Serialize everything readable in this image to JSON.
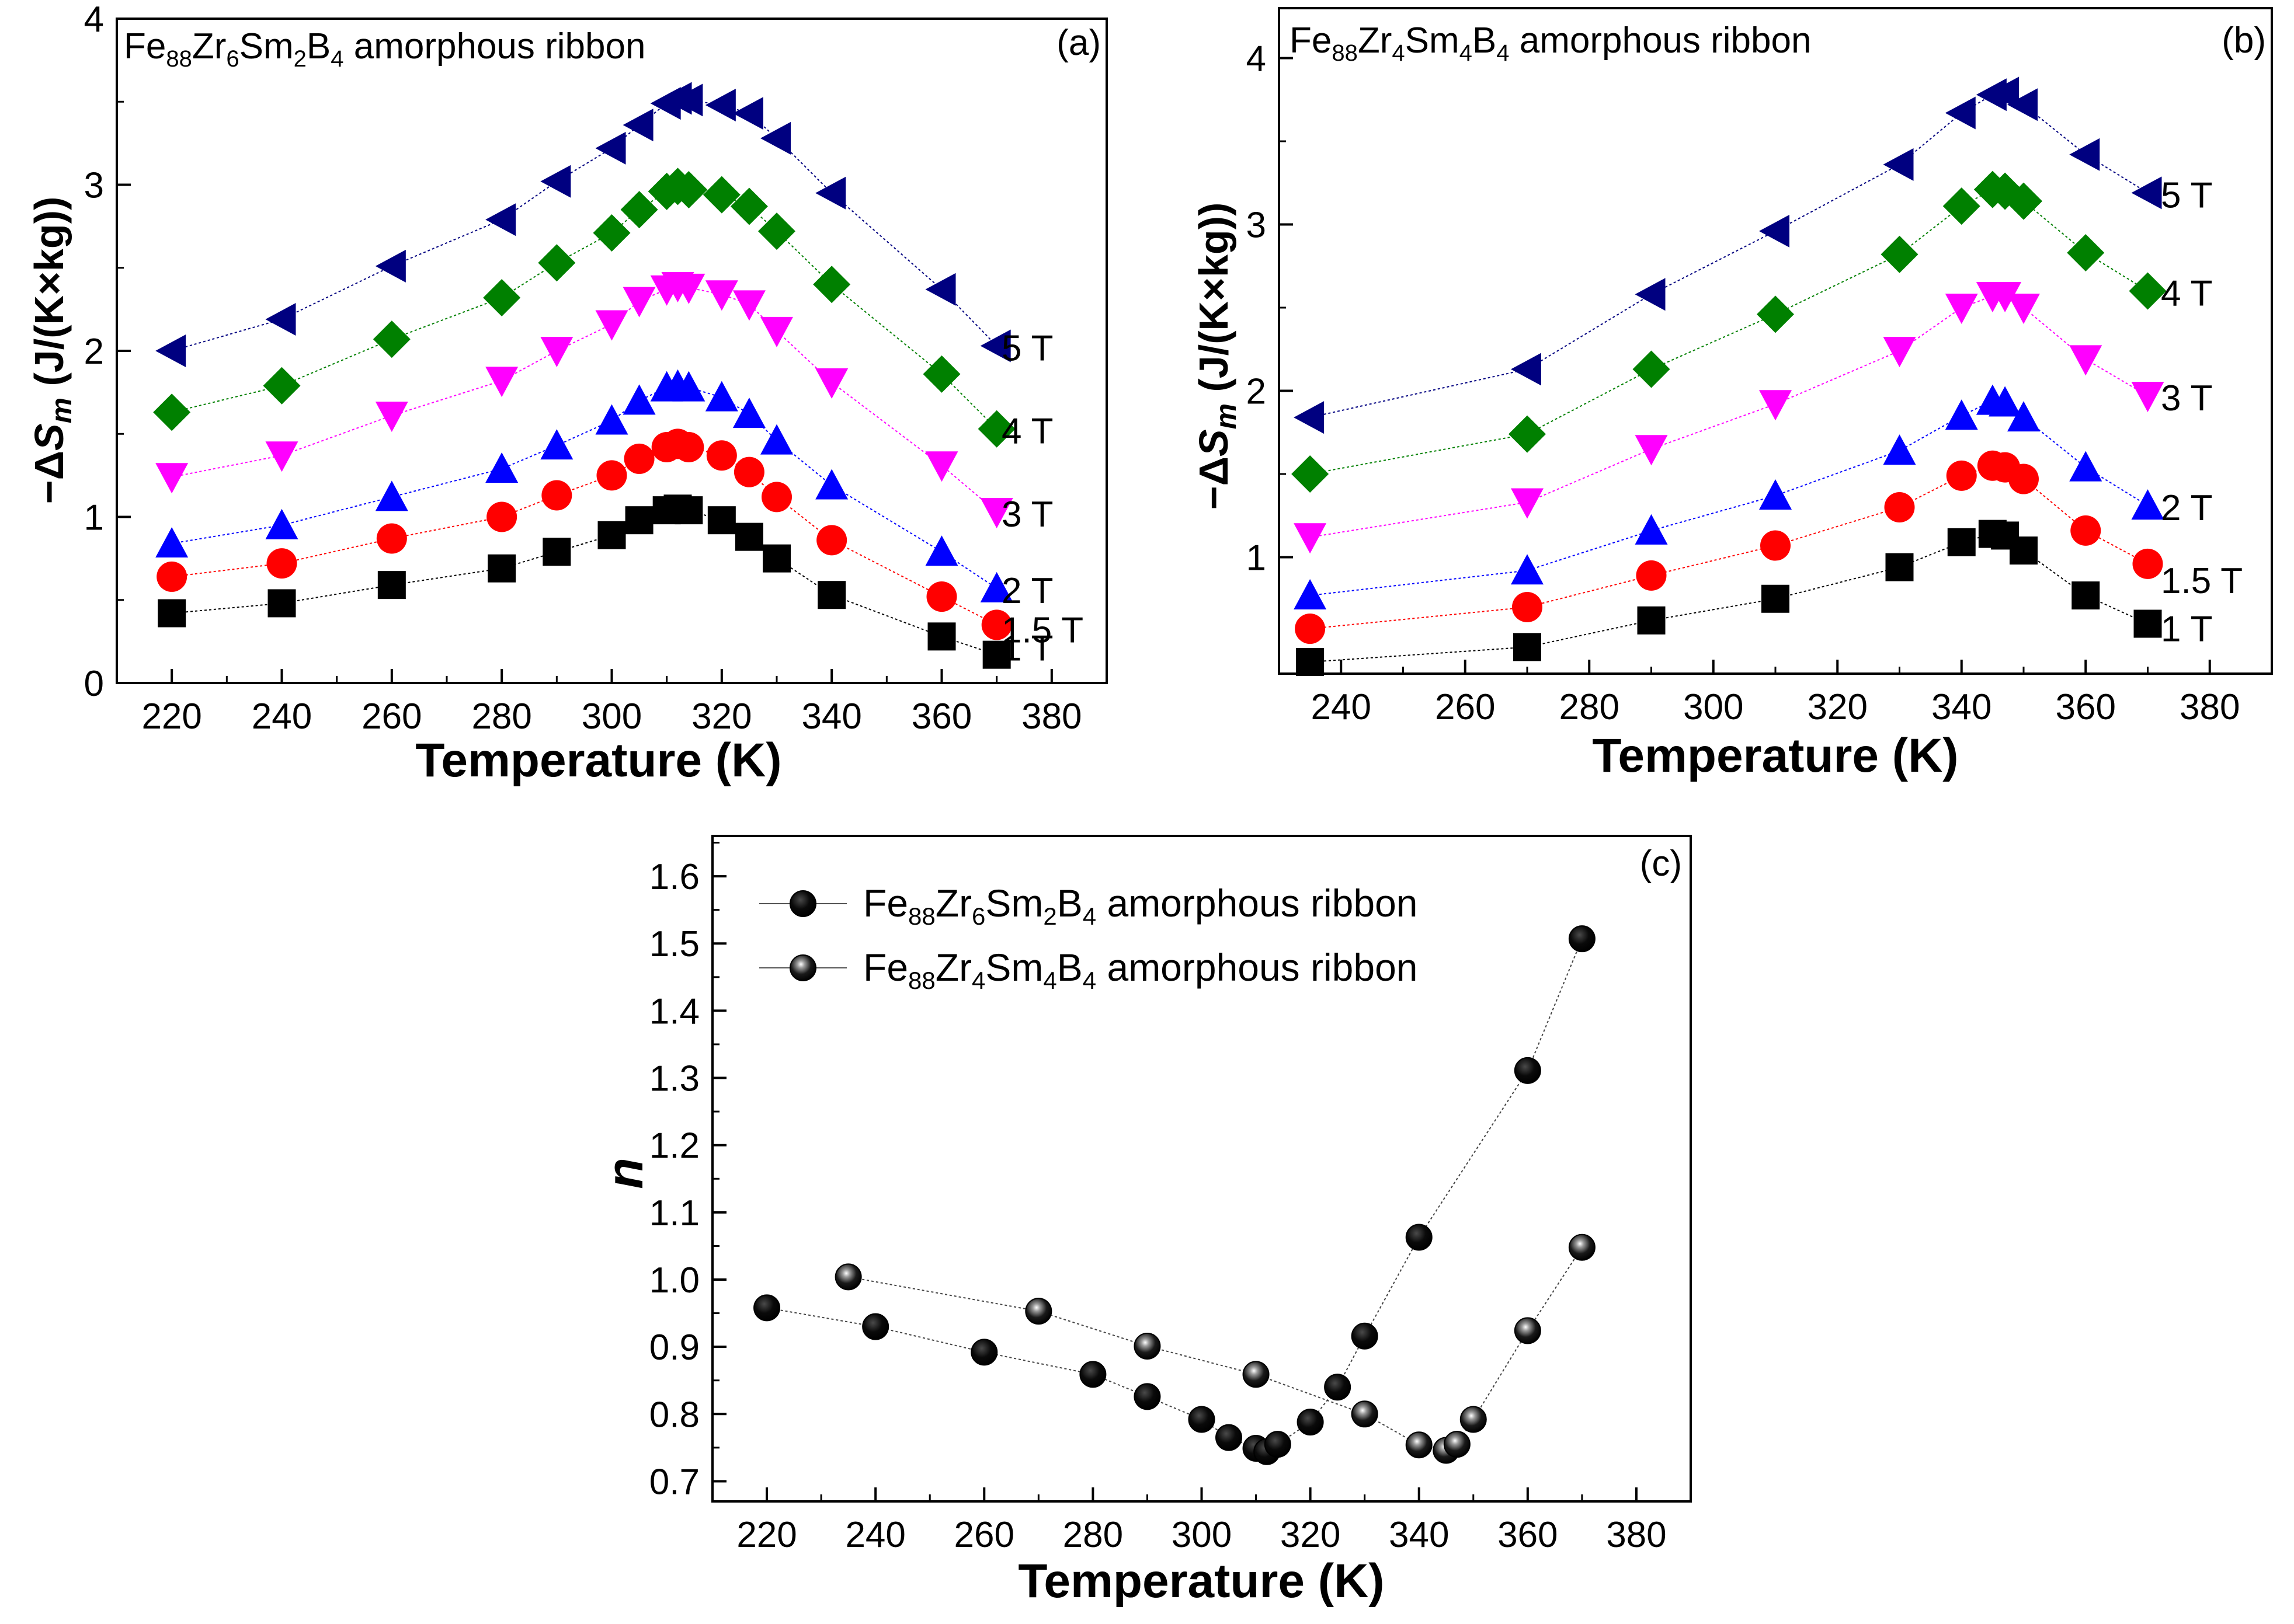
{
  "chart_data": [
    {
      "type": "scatter",
      "panel": "(a)",
      "title": {
        "pre": "Fe",
        "s1": "88",
        "t1": "Zr",
        "s2": "6",
        "t2": "Sm",
        "s3": "2",
        "t3": "B",
        "s4": "4",
        "post": " amorphous ribbon"
      },
      "xlabel": "Temperature (K)",
      "ylabel": {
        "pre": "−Δ",
        "sym": "S",
        "sub": "m",
        "post": " (J/(K×kg))"
      },
      "xlim": [
        210,
        390
      ],
      "ylim": [
        0,
        4
      ],
      "xticks": [
        "220",
        "240",
        "260",
        "280",
        "300",
        "320",
        "340",
        "360",
        "380"
      ],
      "yticks": [
        "0",
        "1",
        "2",
        "3",
        "4"
      ],
      "x": [
        220,
        240,
        260,
        280,
        290,
        300,
        305,
        310,
        312,
        314,
        320,
        325,
        330,
        340,
        360,
        370
      ],
      "series": [
        {
          "name": "1 T",
          "color": "#000000",
          "marker": "square",
          "values": [
            0.42,
            0.48,
            0.59,
            0.69,
            0.79,
            0.89,
            0.98,
            1.04,
            1.05,
            1.04,
            0.98,
            0.88,
            0.75,
            0.53,
            0.28,
            0.17
          ]
        },
        {
          "name": "1.5 T",
          "color": "#ff0000",
          "marker": "circle",
          "values": [
            0.64,
            0.72,
            0.87,
            1.0,
            1.13,
            1.25,
            1.35,
            1.42,
            1.44,
            1.42,
            1.37,
            1.27,
            1.12,
            0.86,
            0.52,
            0.35
          ]
        },
        {
          "name": "2 T",
          "color": "#0000ff",
          "marker": "triangle-up",
          "values": [
            0.84,
            0.95,
            1.12,
            1.29,
            1.43,
            1.58,
            1.7,
            1.78,
            1.79,
            1.78,
            1.72,
            1.62,
            1.46,
            1.19,
            0.79,
            0.57
          ]
        },
        {
          "name": "3 T",
          "color": "#ff00ff",
          "marker": "triangle-down",
          "values": [
            1.24,
            1.37,
            1.61,
            1.82,
            2.0,
            2.16,
            2.3,
            2.37,
            2.39,
            2.38,
            2.34,
            2.28,
            2.12,
            1.81,
            1.31,
            1.03
          ]
        },
        {
          "name": "4 T",
          "color": "#008000",
          "marker": "diamond",
          "values": [
            1.63,
            1.79,
            2.07,
            2.32,
            2.53,
            2.71,
            2.85,
            2.96,
            2.99,
            2.97,
            2.94,
            2.87,
            2.72,
            2.4,
            1.86,
            1.53
          ]
        },
        {
          "name": "5 T",
          "color": "#000080",
          "marker": "triangle-left",
          "values": [
            2.0,
            2.19,
            2.51,
            2.79,
            3.02,
            3.22,
            3.36,
            3.49,
            3.52,
            3.51,
            3.48,
            3.43,
            3.28,
            2.95,
            2.37,
            2.03
          ]
        }
      ]
    },
    {
      "type": "scatter",
      "panel": "(b)",
      "title": {
        "pre": "Fe",
        "s1": "88",
        "t1": "Zr",
        "s2": "4",
        "t2": "Sm",
        "s3": "4",
        "t3": "B",
        "s4": "4",
        "post": " amorphous ribbon"
      },
      "xlabel": "Temperature (K)",
      "ylabel": {
        "pre": "−Δ",
        "sym": "S",
        "sub": "m",
        "post": " (J/(K×kg))"
      },
      "xlim": [
        230,
        390
      ],
      "ylim": [
        0.3,
        4.3
      ],
      "xticks": [
        "240",
        "260",
        "280",
        "300",
        "320",
        "340",
        "360",
        "380"
      ],
      "yticks": [
        "1",
        "2",
        "3",
        "4"
      ],
      "x": [
        235,
        270,
        290,
        310,
        330,
        340,
        345,
        347,
        350,
        360,
        370
      ],
      "series": [
        {
          "name": "1 T",
          "color": "#000000",
          "marker": "square",
          "values": [
            0.37,
            0.46,
            0.62,
            0.75,
            0.94,
            1.09,
            1.14,
            1.13,
            1.04,
            0.77,
            0.6
          ]
        },
        {
          "name": "1.5 T",
          "color": "#ff0000",
          "marker": "circle",
          "values": [
            0.57,
            0.7,
            0.89,
            1.07,
            1.3,
            1.49,
            1.55,
            1.54,
            1.47,
            1.16,
            0.96
          ]
        },
        {
          "name": "2 T",
          "color": "#0000ff",
          "marker": "triangle-up",
          "values": [
            0.77,
            0.92,
            1.16,
            1.37,
            1.64,
            1.85,
            1.94,
            1.93,
            1.84,
            1.54,
            1.31
          ]
        },
        {
          "name": "3 T",
          "color": "#ff00ff",
          "marker": "triangle-down",
          "values": [
            1.12,
            1.33,
            1.65,
            1.92,
            2.24,
            2.5,
            2.57,
            2.57,
            2.5,
            2.19,
            1.97
          ]
        },
        {
          "name": "4 T",
          "color": "#008000",
          "marker": "diamond",
          "values": [
            1.5,
            1.74,
            2.13,
            2.46,
            2.82,
            3.11,
            3.21,
            3.2,
            3.14,
            2.83,
            2.6
          ]
        },
        {
          "name": "5 T",
          "color": "#000080",
          "marker": "triangle-left",
          "values": [
            1.84,
            2.13,
            2.58,
            2.96,
            3.36,
            3.67,
            3.78,
            3.79,
            3.72,
            3.42,
            3.19
          ]
        }
      ]
    },
    {
      "type": "line",
      "panel": "(c)",
      "xlabel": "Temperature (K)",
      "ylabel": "n",
      "xlim": [
        210,
        390
      ],
      "ylim": [
        0.67,
        1.66
      ],
      "xticks": [
        "220",
        "240",
        "260",
        "280",
        "300",
        "320",
        "340",
        "360",
        "380"
      ],
      "yticks": [
        "0.7",
        "0.8",
        "0.9",
        "1.0",
        "1.1",
        "1.2",
        "1.3",
        "1.4",
        "1.5",
        "1.6"
      ],
      "series": [
        {
          "name": {
            "pre": "Fe",
            "s1": "88",
            "t1": "Zr",
            "s2": "6",
            "t2": "Sm",
            "s3": "2",
            "t3": "B",
            "s4": "4",
            "post": " amorphous ribbon"
          },
          "marker": "solid-sphere",
          "x": [
            220,
            240,
            260,
            280,
            290,
            300,
            305,
            310,
            312,
            314,
            320,
            325,
            330,
            340,
            360,
            370
          ],
          "values": [
            0.958,
            0.93,
            0.892,
            0.859,
            0.826,
            0.792,
            0.765,
            0.749,
            0.744,
            0.755,
            0.788,
            0.84,
            0.916,
            1.063,
            1.311,
            1.507
          ]
        },
        {
          "name": {
            "pre": "Fe",
            "s1": "88",
            "t1": "Zr",
            "s2": "4",
            "t2": "Sm",
            "s3": "4",
            "t3": "B",
            "s4": "4",
            "post": " amorphous ribbon"
          },
          "marker": "shaded-sphere",
          "x": [
            235,
            270,
            290,
            310,
            330,
            340,
            345,
            347,
            350,
            360,
            370
          ],
          "values": [
            1.004,
            0.953,
            0.901,
            0.859,
            0.8,
            0.754,
            0.746,
            0.755,
            0.792,
            0.924,
            1.048
          ]
        }
      ]
    }
  ]
}
